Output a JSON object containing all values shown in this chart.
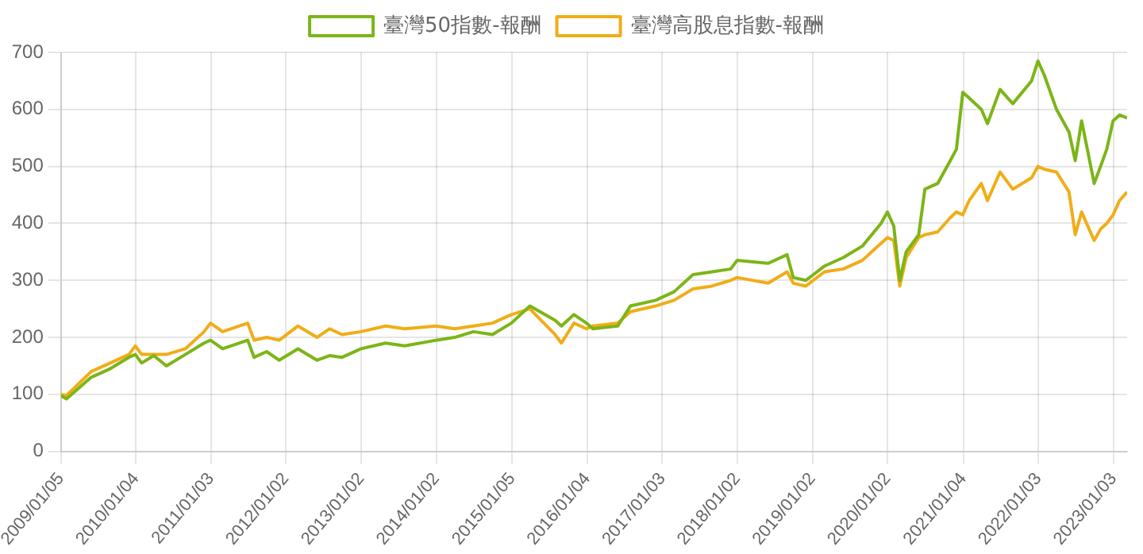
{
  "chart_data": {
    "type": "line",
    "legend": "top",
    "grid": true,
    "marker": "none",
    "line_style": "solid",
    "x": [
      "2009-01-05",
      "2009-02",
      "2009-06",
      "2009-09",
      "2009-12",
      "2010-01",
      "2010-02",
      "2010-04",
      "2010-06",
      "2010-09",
      "2010-12",
      "2011-01",
      "2011-03",
      "2011-07",
      "2011-08",
      "2011-10",
      "2011-12",
      "2012-03",
      "2012-06",
      "2012-08",
      "2012-10",
      "2013-01",
      "2013-05",
      "2013-08",
      "2014-01",
      "2014-04",
      "2014-07",
      "2014-10",
      "2015-01",
      "2015-04",
      "2015-08",
      "2015-09",
      "2015-11",
      "2016-01",
      "2016-02",
      "2016-06",
      "2016-08",
      "2016-12",
      "2017-03",
      "2017-06",
      "2017-09",
      "2017-12",
      "2018-01",
      "2018-06",
      "2018-09",
      "2018-10",
      "2018-12",
      "2019-03",
      "2019-06",
      "2019-09",
      "2019-12",
      "2020-01",
      "2020-02",
      "2020-03",
      "2020-04",
      "2020-06",
      "2020-07",
      "2020-09",
      "2020-11",
      "2020-12",
      "2021-01",
      "2021-02",
      "2021-04",
      "2021-05",
      "2021-07",
      "2021-09",
      "2021-12",
      "2022-01",
      "2022-02",
      "2022-04",
      "2022-06",
      "2022-07",
      "2022-08",
      "2022-10",
      "2022-11",
      "2022-12",
      "2023-01",
      "2023-02",
      "2023-03-10"
    ],
    "series": [
      {
        "name": "臺灣50指數-報酬",
        "color": "#7cb518",
        "values": [
          98,
          92,
          130,
          145,
          165,
          170,
          155,
          168,
          150,
          170,
          190,
          195,
          180,
          195,
          165,
          175,
          160,
          180,
          160,
          168,
          165,
          180,
          190,
          185,
          195,
          200,
          210,
          205,
          225,
          255,
          230,
          220,
          240,
          225,
          215,
          220,
          255,
          265,
          280,
          310,
          315,
          320,
          335,
          330,
          345,
          305,
          300,
          325,
          340,
          360,
          400,
          420,
          395,
          300,
          350,
          380,
          460,
          470,
          510,
          530,
          630,
          620,
          600,
          575,
          635,
          610,
          650,
          685,
          660,
          600,
          560,
          510,
          580,
          470,
          500,
          530,
          580,
          590,
          585
        ]
      },
      {
        "name": "臺灣高股息指數-報酬",
        "color": "#f0ad17",
        "values": [
          100,
          98,
          140,
          155,
          170,
          185,
          170,
          170,
          170,
          180,
          210,
          225,
          210,
          225,
          195,
          200,
          195,
          220,
          200,
          215,
          205,
          210,
          220,
          215,
          220,
          215,
          220,
          225,
          240,
          250,
          205,
          190,
          225,
          215,
          220,
          225,
          245,
          255,
          265,
          285,
          290,
          300,
          305,
          295,
          315,
          295,
          290,
          315,
          320,
          335,
          365,
          375,
          370,
          290,
          340,
          375,
          380,
          385,
          410,
          420,
          415,
          440,
          470,
          440,
          490,
          460,
          480,
          500,
          495,
          490,
          455,
          380,
          420,
          370,
          390,
          400,
          415,
          440,
          455
        ]
      }
    ],
    "xlim": [
      "2009-01-05",
      "2023-03-10"
    ],
    "xticks": [
      {
        "value": "2009-01-05",
        "label": "2009/01/05"
      },
      {
        "value": "2010-01-04",
        "label": "2010/01/04"
      },
      {
        "value": "2011-01-03",
        "label": "2011/01/03"
      },
      {
        "value": "2012-01-02",
        "label": "2012/01/02"
      },
      {
        "value": "2013-01-02",
        "label": "2013/01/02"
      },
      {
        "value": "2014-01-02",
        "label": "2014/01/02"
      },
      {
        "value": "2015-01-05",
        "label": "2015/01/05"
      },
      {
        "value": "2016-01-04",
        "label": "2016/01/04"
      },
      {
        "value": "2017-01-03",
        "label": "2017/01/03"
      },
      {
        "value": "2018-01-02",
        "label": "2018/01/02"
      },
      {
        "value": "2019-01-02",
        "label": "2019/01/02"
      },
      {
        "value": "2020-01-02",
        "label": "2020/01/02"
      },
      {
        "value": "2021-01-04",
        "label": "2021/01/04"
      },
      {
        "value": "2022-01-03",
        "label": "2022/01/03"
      },
      {
        "value": "2023-01-03",
        "label": "2023/01/03"
      }
    ],
    "ylim": [
      0,
      700
    ],
    "yticks": [
      0,
      100,
      200,
      300,
      400,
      500,
      600,
      700
    ]
  }
}
